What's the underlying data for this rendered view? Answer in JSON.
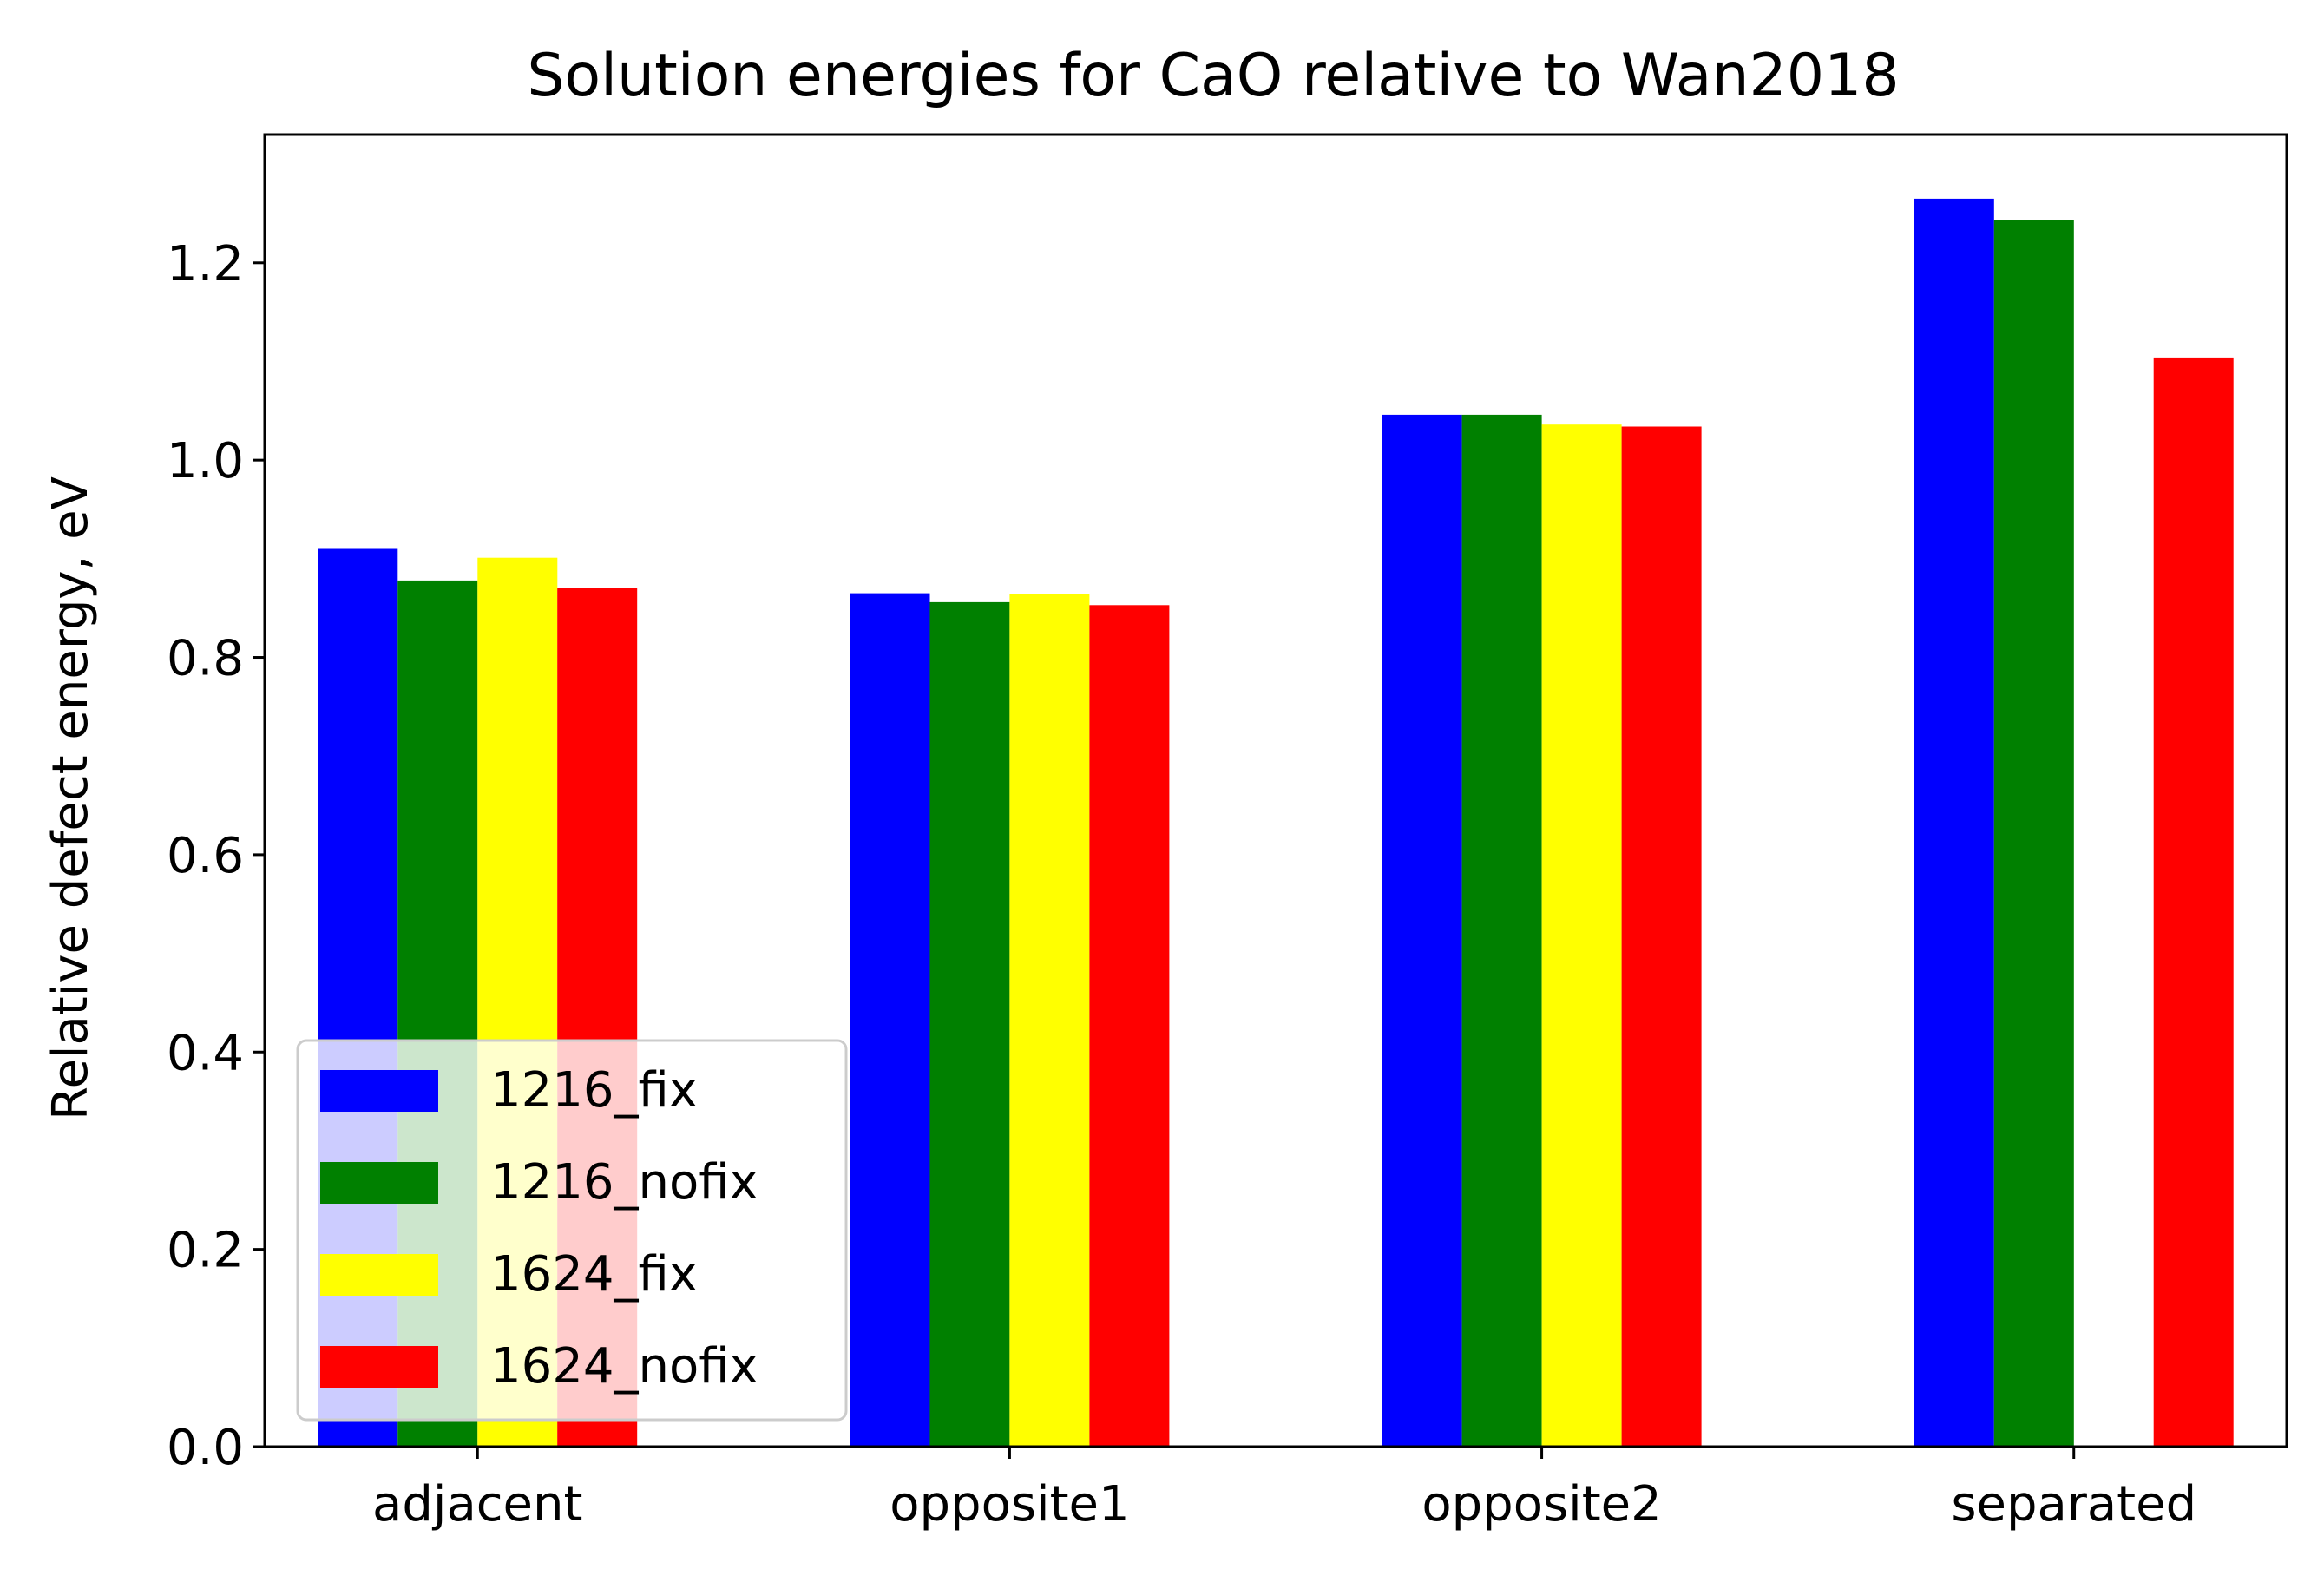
{
  "chart_data": {
    "type": "bar",
    "title": "Solution energies for CaO relative to Wan2018",
    "xlabel": "",
    "ylabel": "Relative defect energy, eV",
    "ylim": [
      0,
      1.33
    ],
    "yticks": [
      "0.0",
      "0.2",
      "0.4",
      "0.6",
      "0.8",
      "1.0",
      "1.2"
    ],
    "categories": [
      "adjacent",
      "opposite1",
      "opposite2",
      "separated"
    ],
    "series": [
      {
        "name": "1216_fix",
        "color": "#0000ff",
        "values": [
          0.91,
          0.865,
          1.046,
          1.265
        ]
      },
      {
        "name": "1216_nofix",
        "color": "#008000",
        "values": [
          0.878,
          0.856,
          1.046,
          1.243
        ]
      },
      {
        "name": "1624_fix",
        "color": "#ffff00",
        "values": [
          0.901,
          0.864,
          1.036,
          null
        ]
      },
      {
        "name": "1624_nofix",
        "color": "#ff0000",
        "values": [
          0.87,
          0.853,
          1.034,
          1.104
        ]
      }
    ],
    "grid": false,
    "legend": "lower-left"
  }
}
